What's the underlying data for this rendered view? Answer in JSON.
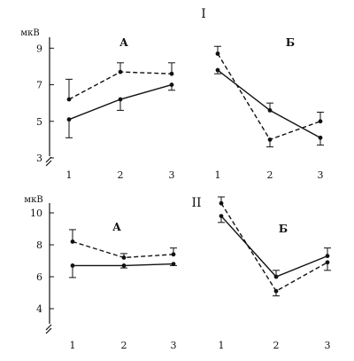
{
  "figure": {
    "section_labels": [
      "I",
      "II"
    ],
    "unit": "мкВ"
  },
  "chart_data": [
    {
      "type": "line",
      "title": "А",
      "section": "I",
      "ylabel": "мкВ",
      "ylim": [
        3,
        9.5
      ],
      "y_ticks": [
        3,
        5,
        7,
        9
      ],
      "x": [
        1,
        2,
        3
      ],
      "series": [
        {
          "line": "solid",
          "values": [
            5.1,
            6.2,
            7.0
          ],
          "errors": [
            1.0,
            0.6,
            0.3
          ]
        },
        {
          "line": "dashed",
          "values": [
            6.2,
            7.7,
            7.6
          ],
          "errors": [
            1.1,
            0.5,
            0.6
          ]
        }
      ]
    },
    {
      "type": "line",
      "title": "Б",
      "section": "I",
      "ylabel": "",
      "ylim": [
        3,
        9.5
      ],
      "y_ticks": [],
      "x": [
        1,
        2,
        3
      ],
      "series": [
        {
          "line": "solid",
          "values": [
            7.8,
            5.6,
            4.1
          ],
          "errors": [
            0.2,
            0.4,
            0.4
          ]
        },
        {
          "line": "dashed",
          "values": [
            8.7,
            4.0,
            5.0
          ],
          "errors": [
            0.4,
            0.4,
            0.5
          ]
        }
      ]
    },
    {
      "type": "line",
      "title": "А",
      "section": "II",
      "ylabel": "мкВ",
      "ylim": [
        3,
        10.5
      ],
      "y_ticks": [
        4,
        6,
        8,
        10
      ],
      "x": [
        1,
        2,
        3
      ],
      "series": [
        {
          "line": "solid",
          "values": [
            6.7,
            6.7,
            6.8
          ],
          "errors": [
            0.75,
            0.15,
            0.1
          ]
        },
        {
          "line": "dashed",
          "values": [
            8.2,
            7.2,
            7.4
          ],
          "errors": [
            0.75,
            0.25,
            0.4
          ]
        }
      ]
    },
    {
      "type": "line",
      "title": "Б",
      "section": "II",
      "ylabel": "",
      "ylim": [
        3,
        10.5
      ],
      "y_ticks": [],
      "x": [
        1,
        2,
        3
      ],
      "series": [
        {
          "line": "solid",
          "values": [
            9.8,
            6.0,
            7.3
          ],
          "errors": [
            0.4,
            0.4,
            0.5
          ]
        },
        {
          "line": "dashed",
          "values": [
            10.6,
            5.1,
            6.9
          ],
          "errors": [
            0.4,
            0.3,
            0.5
          ]
        }
      ]
    }
  ]
}
